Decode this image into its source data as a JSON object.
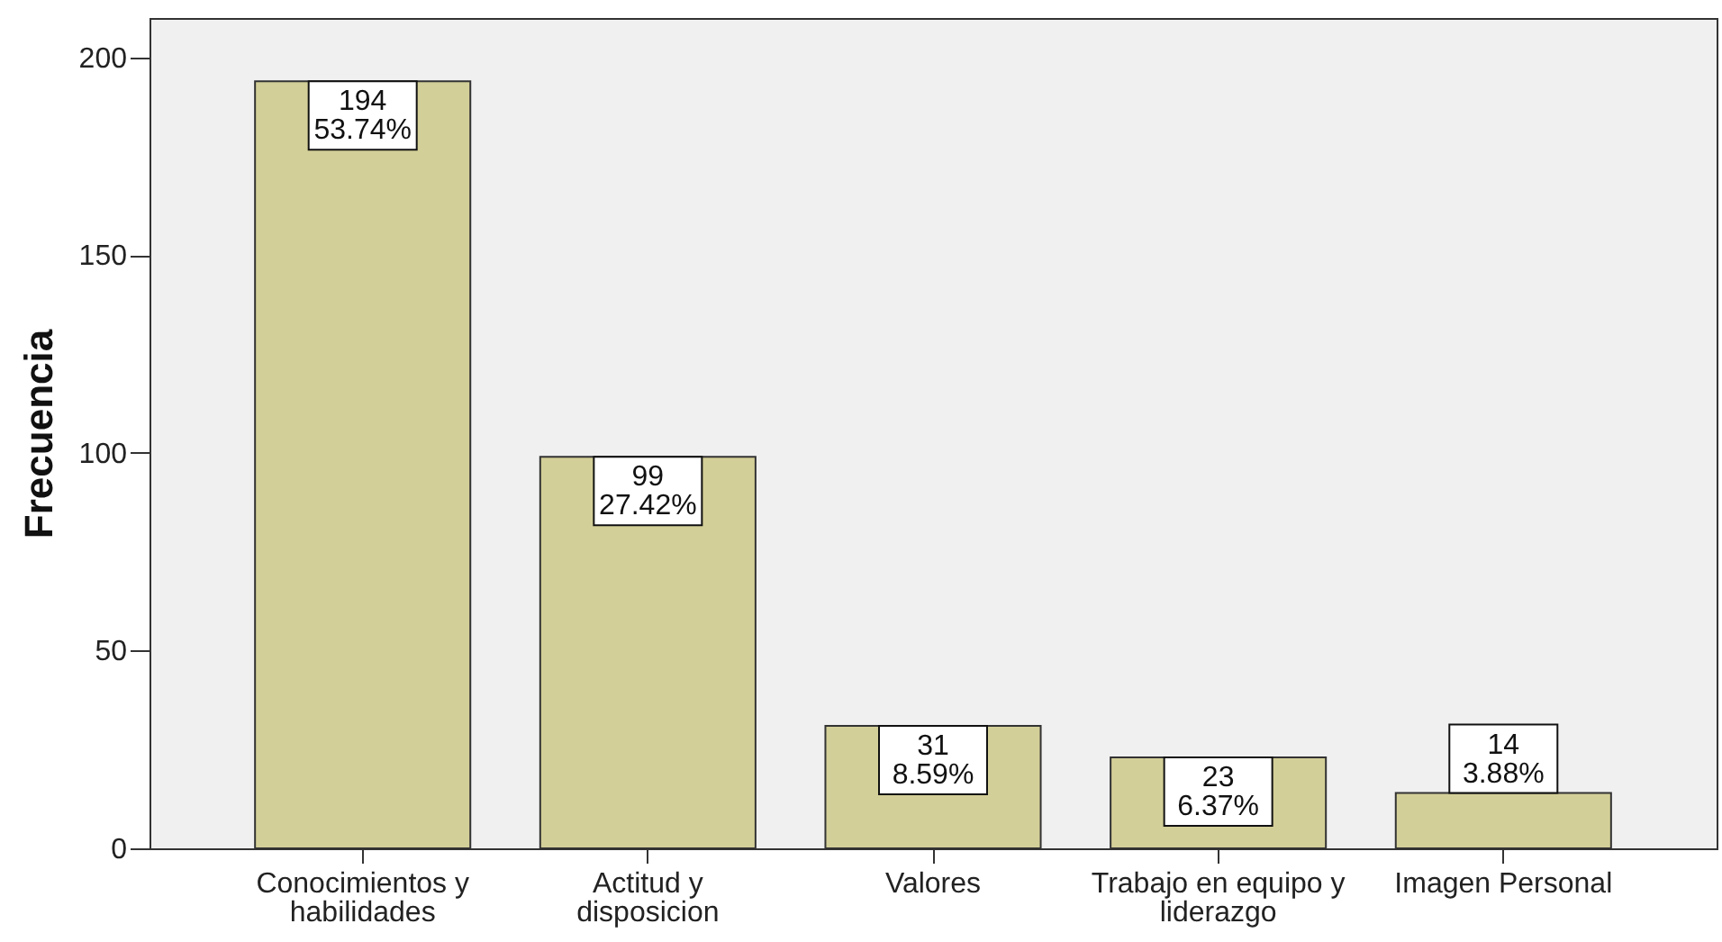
{
  "chart_data": {
    "type": "bar",
    "ylabel": "Frecuencia",
    "categories": [
      "Conocimientos y habilidades",
      "Actitud y disposicion",
      "Valores",
      "Trabajo en equipo y liderazgo",
      "Imagen Personal"
    ],
    "values": [
      194,
      99,
      31,
      23,
      14
    ],
    "color": "#d3cf98",
    "value_labels": [
      "194\n53.74%",
      "99\n27.42%",
      "31\n8.59%",
      "23\n6.37%",
      "14\n3.88%"
    ],
    "ylim": [
      0,
      210
    ],
    "yticks": [
      0,
      50,
      100,
      150,
      200
    ]
  }
}
